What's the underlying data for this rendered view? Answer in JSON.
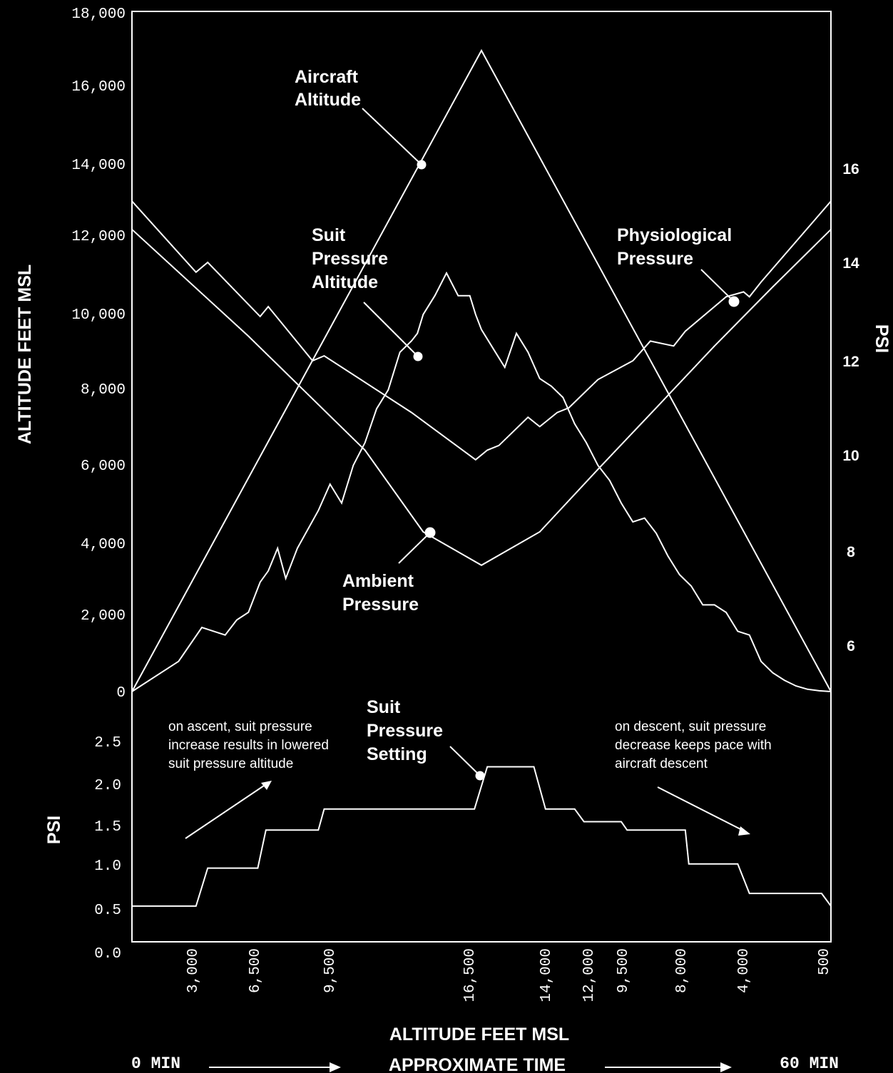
{
  "chart_data": {
    "type": "line",
    "left_axis": {
      "label": "ALTITUDE FEET MSL",
      "ticks": [
        "18,000",
        "16,000",
        "14,000",
        "12,000",
        "10,000",
        "8,000",
        "6,000",
        "4,000",
        "2,000",
        "0"
      ],
      "ylim": [
        0,
        18000
      ]
    },
    "right_axis": {
      "label": "PSI",
      "ticks": [
        "16",
        "14",
        "12",
        "10",
        "8",
        "6"
      ]
    },
    "lower_axis": {
      "label": "PSI",
      "ticks": [
        "2.5",
        "2.0",
        "1.5",
        "1.0",
        "0.5",
        "0.0"
      ],
      "ylim": [
        0,
        2.5
      ]
    },
    "x_axis": {
      "label": "ALTITUDE FEET MSL",
      "ticks": [
        "3,000",
        "6,500",
        "9,500",
        "16,500",
        "14,000",
        "12,000",
        "9,500",
        "8,000",
        "4,000",
        "500"
      ]
    },
    "time_axis": {
      "start": "0 MIN",
      "label": "APPROXIMATE TIME",
      "end": "60 MIN"
    },
    "series": [
      {
        "name": "Aircraft Altitude",
        "unit": "feet MSL",
        "x_min": [
          0,
          30,
          60
        ],
        "values": [
          0,
          17000,
          0
        ]
      },
      {
        "name": "Suit Pressure Altitude",
        "unit": "feet MSL",
        "x_min": [
          0,
          4,
          6,
          8,
          9,
          10,
          11,
          11.7,
          12.5,
          13.2,
          14.2,
          16,
          17,
          18,
          19,
          20,
          21,
          22,
          23,
          24,
          24.5,
          25,
          26,
          27,
          28,
          29,
          29.5,
          30,
          31,
          32,
          33,
          34,
          35,
          35.5,
          36,
          37,
          38,
          39,
          40,
          41,
          42,
          43,
          44,
          45,
          46,
          47,
          48,
          49,
          50,
          51,
          52,
          53,
          54,
          55,
          56,
          57,
          58,
          59,
          60
        ],
        "values": [
          0,
          800,
          1700,
          1500,
          1900,
          2100,
          2900,
          3200,
          3800,
          3000,
          3800,
          4800,
          5500,
          5000,
          6000,
          6600,
          7500,
          8000,
          9000,
          9300,
          9500,
          10000,
          10500,
          11100,
          10500,
          10500,
          10000,
          9600,
          9100,
          8600,
          9500,
          9000,
          8300,
          8200,
          8100,
          7800,
          7100,
          6600,
          6000,
          5600,
          5000,
          4500,
          4600,
          4200,
          3600,
          3100,
          2800,
          2300,
          2300,
          2100,
          1600,
          1500,
          800,
          500,
          300,
          150,
          60,
          20,
          0
        ]
      },
      {
        "name": "Ambient Pressure",
        "unit": "psi",
        "x_min": [
          0,
          10,
          20,
          25,
          30,
          35,
          40,
          45,
          50,
          55,
          60
        ],
        "values": [
          14.7,
          12.5,
          10.1,
          8.4,
          7.7,
          8.4,
          9.7,
          11.0,
          12.3,
          13.5,
          14.7
        ]
      },
      {
        "name": "Physiological Pressure",
        "unit": "psi",
        "x_min": [
          0,
          5.5,
          6.5,
          11,
          11.7,
          15.5,
          16.5,
          24,
          29.5,
          30.5,
          31.5,
          34,
          35,
          36.5,
          37.5,
          40,
          43,
          44.5,
          46.5,
          47.5,
          51,
          52.5,
          53,
          54,
          60
        ],
        "values": [
          15.3,
          13.8,
          14.0,
          12.9,
          13.1,
          12.0,
          12.1,
          10.9,
          9.9,
          10.1,
          10.2,
          10.8,
          10.6,
          10.9,
          11.0,
          11.6,
          12.0,
          12.4,
          12.3,
          12.6,
          13.3,
          13.4,
          13.3,
          13.6,
          15.3
        ]
      },
      {
        "name": "Suit Pressure Setting",
        "unit": "psi",
        "x_min": [
          0,
          5.5,
          6.5,
          10.8,
          11.5,
          16,
          16.5,
          29.4,
          30.5,
          34.5,
          35.5,
          38,
          38.8,
          42,
          42.5,
          45,
          47.5,
          47.8,
          52,
          53,
          59.2,
          60
        ],
        "values": [
          0.55,
          0.55,
          1.0,
          1.0,
          1.45,
          1.45,
          1.7,
          1.7,
          2.2,
          2.2,
          1.7,
          1.7,
          1.55,
          1.55,
          1.45,
          1.45,
          1.45,
          1.05,
          1.05,
          0.7,
          0.7,
          0.55
        ]
      }
    ],
    "labels": {
      "aircraft": [
        "Aircraft",
        "Altitude"
      ],
      "suit_alt": [
        "Suit",
        "Pressure",
        "Altitude"
      ],
      "physio": [
        "Physiological",
        "Pressure"
      ],
      "ambient": [
        "Ambient",
        "Pressure"
      ],
      "suit_setting": [
        "Suit",
        "Pressure",
        "Setting"
      ]
    },
    "annotations": {
      "ascent": [
        "on ascent, suit pressure",
        "increase results in lowered",
        "suit pressure altitude"
      ],
      "descent": [
        "on descent, suit pressure",
        "decrease keeps pace with",
        "aircraft descent"
      ]
    },
    "grid": false,
    "background": "#000000",
    "line_color": "#ffffff"
  }
}
